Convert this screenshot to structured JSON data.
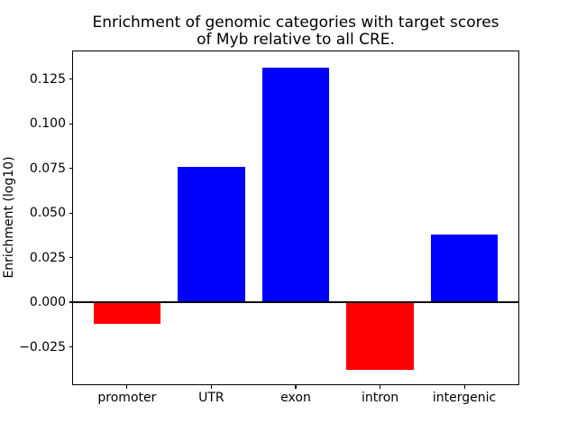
{
  "title": "Enrichment of genomic categories with target scores\nof Myb relative to all CRE.",
  "chart_data": {
    "type": "bar",
    "title": "Enrichment of genomic categories with target scores of Myb relative to all CRE.",
    "categories": [
      "promoter",
      "UTR",
      "exon",
      "intron",
      "intergenic"
    ],
    "values": [
      -0.012,
      0.076,
      0.1315,
      -0.038,
      0.038
    ],
    "bar_colors": [
      "#ff0000",
      "#0000ff",
      "#0000ff",
      "#ff0000",
      "#0000ff"
    ],
    "positive_color": "#0000ff",
    "negative_color": "#ff0000",
    "xlabel": "",
    "ylabel": "Enrichment (log10)",
    "yticks": [
      0.125,
      0.1,
      0.075,
      0.05,
      0.025,
      0.0,
      -0.025
    ],
    "ytick_labels": [
      "0.125",
      "0.100",
      "0.075",
      "0.050",
      "0.025",
      "0.000",
      "−0.025"
    ],
    "ylim": [
      -0.046,
      0.1406
    ],
    "xlim": [
      -0.64,
      4.64
    ],
    "bar_width_fraction": 0.8,
    "zero_line": true,
    "grid": false,
    "legend": "none",
    "background_color": "#ffffff",
    "spine_color": "#000000"
  }
}
